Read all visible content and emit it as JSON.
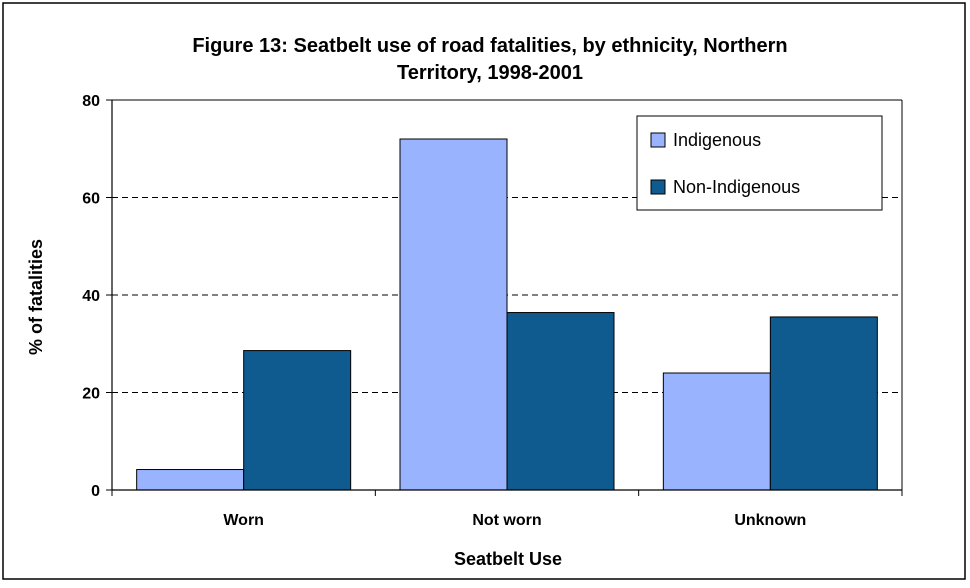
{
  "chart_data": {
    "type": "bar",
    "title_lines": [
      "Figure 13: Seatbelt use of road fatalities, by ethnicity, Northern",
      "Territory, 1998-2001"
    ],
    "xlabel": "Seatbelt Use",
    "ylabel": "% of fatalities",
    "categories": [
      "Worn",
      "Not worn",
      "Unknown"
    ],
    "series": [
      {
        "name": "Indigenous",
        "color": "#99B3FF",
        "values": [
          4.2,
          72,
          24
        ]
      },
      {
        "name": "Non-Indigenous",
        "color": "#0F5A8F",
        "values": [
          28.6,
          36.4,
          35.5
        ]
      }
    ],
    "ylim": [
      0,
      80
    ],
    "yticks": [
      0,
      20,
      40,
      60,
      80
    ],
    "grid": "horizontal dashed",
    "legend_position": "top-right"
  }
}
